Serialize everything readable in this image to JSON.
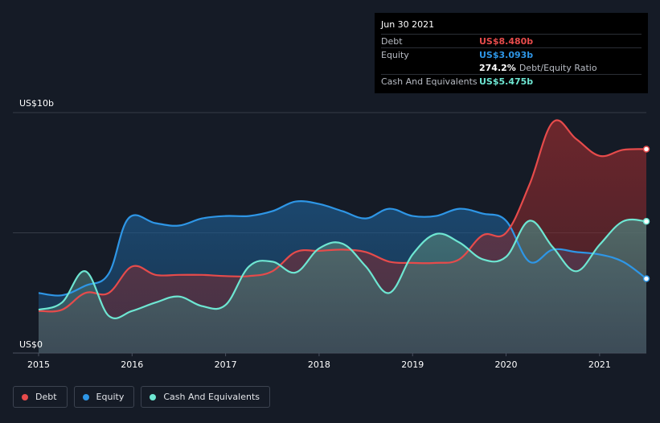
{
  "tooltip": {
    "date": "Jun 30 2021",
    "rows": [
      {
        "label": "Debt",
        "value": "US$8.480b",
        "color": "#e64b4b"
      },
      {
        "label": "Equity",
        "value": "US$3.093b",
        "color": "#2e96e6"
      },
      {
        "ratio_value": "274.2%",
        "ratio_label": "Debt/Equity Ratio"
      },
      {
        "label": "Cash And Equivalents",
        "value": "US$5.475b",
        "color": "#6ee6d2"
      }
    ]
  },
  "legend": [
    {
      "label": "Debt",
      "color": "#e64b4b"
    },
    {
      "label": "Equity",
      "color": "#2e96e6"
    },
    {
      "label": "Cash And Equivalents",
      "color": "#6ee6d2"
    }
  ],
  "chart_data": {
    "type": "area",
    "title": "",
    "xlabel": "",
    "ylabel": "",
    "y_top_label": "US$10b",
    "y_bottom_label": "US$0",
    "ylim": [
      0,
      10
    ],
    "xlim": [
      2015.0,
      2021.5
    ],
    "x_ticks": [
      "2015",
      "2016",
      "2017",
      "2018",
      "2019",
      "2020",
      "2021"
    ],
    "series": [
      {
        "name": "Equity",
        "color": "#2e96e6",
        "x": [
          2015.0,
          2015.25,
          2015.5,
          2015.75,
          2015.96,
          2016.25,
          2016.5,
          2016.75,
          2017.0,
          2017.25,
          2017.5,
          2017.75,
          2018.0,
          2018.25,
          2018.5,
          2018.75,
          2019.0,
          2019.25,
          2019.5,
          2019.75,
          2020.0,
          2020.25,
          2020.5,
          2020.75,
          2021.0,
          2021.25,
          2021.5
        ],
        "values": [
          2.5,
          2.4,
          2.8,
          3.3,
          5.6,
          5.4,
          5.3,
          5.6,
          5.7,
          5.7,
          5.9,
          6.3,
          6.2,
          5.9,
          5.6,
          6.0,
          5.7,
          5.7,
          6.0,
          5.8,
          5.5,
          3.8,
          4.3,
          4.2,
          4.1,
          3.8,
          3.093
        ]
      },
      {
        "name": "Debt",
        "color": "#e64b4b",
        "x": [
          2015.0,
          2015.25,
          2015.5,
          2015.75,
          2016.0,
          2016.25,
          2016.5,
          2016.75,
          2017.0,
          2017.25,
          2017.5,
          2017.75,
          2018.0,
          2018.25,
          2018.5,
          2018.75,
          2019.0,
          2019.25,
          2019.5,
          2019.75,
          2020.0,
          2020.25,
          2020.5,
          2020.75,
          2021.0,
          2021.25,
          2021.5
        ],
        "values": [
          1.75,
          1.8,
          2.5,
          2.5,
          3.6,
          3.25,
          3.25,
          3.25,
          3.2,
          3.2,
          3.4,
          4.2,
          4.25,
          4.3,
          4.2,
          3.8,
          3.75,
          3.75,
          3.9,
          4.9,
          5.0,
          7.0,
          9.6,
          8.9,
          8.2,
          8.45,
          8.48
        ]
      },
      {
        "name": "Cash And Equivalents",
        "color": "#6ee6d2",
        "x": [
          2015.0,
          2015.25,
          2015.5,
          2015.75,
          2016.0,
          2016.25,
          2016.5,
          2016.75,
          2017.0,
          2017.25,
          2017.5,
          2017.75,
          2018.0,
          2018.25,
          2018.5,
          2018.75,
          2019.0,
          2019.25,
          2019.5,
          2019.75,
          2020.0,
          2020.25,
          2020.5,
          2020.75,
          2021.0,
          2021.25,
          2021.5
        ],
        "values": [
          1.8,
          2.1,
          3.4,
          1.55,
          1.75,
          2.1,
          2.35,
          1.95,
          2.0,
          3.6,
          3.8,
          3.35,
          4.35,
          4.55,
          3.6,
          2.5,
          4.1,
          4.95,
          4.6,
          3.9,
          4.0,
          5.5,
          4.4,
          3.4,
          4.5,
          5.475,
          5.475
        ]
      }
    ],
    "grid": true,
    "legend_position": "bottom-left"
  }
}
